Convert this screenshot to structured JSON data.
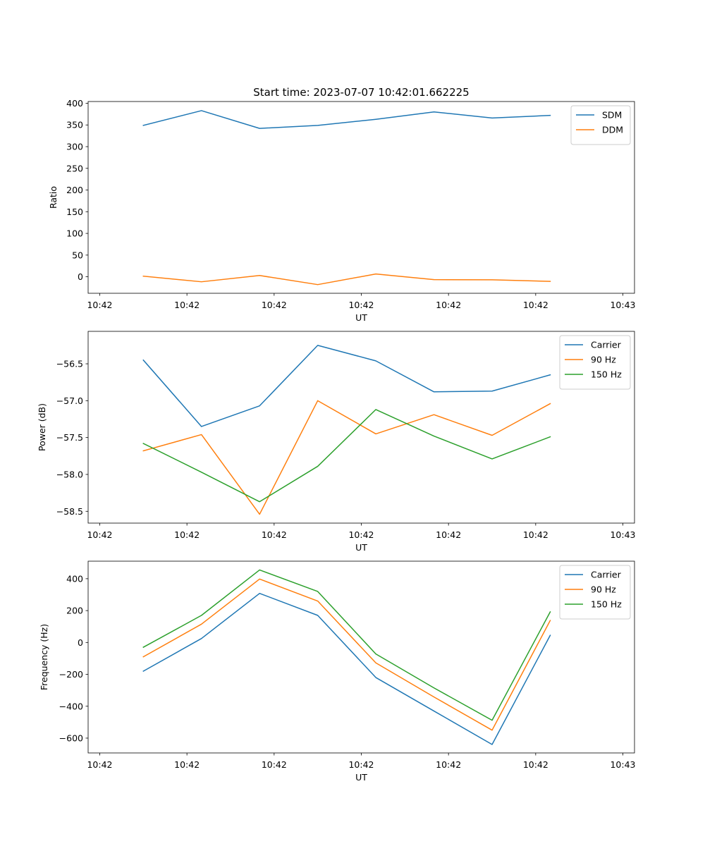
{
  "figure_title": "Start time: 2023-07-07 10:42:01.662225",
  "colors": {
    "blue": "#1f77b4",
    "orange": "#ff7f0e",
    "green": "#2ca02c"
  },
  "chart_data": [
    {
      "type": "line",
      "title": "Start time: 2023-07-07 10:42:01.662225",
      "xlabel": "UT",
      "ylabel": "Ratio",
      "x": [
        0,
        1,
        2,
        3,
        4,
        5,
        6,
        7
      ],
      "x_ticks": [
        -0.75,
        0.75,
        2.25,
        3.75,
        5.25,
        6.75,
        8.25
      ],
      "x_tick_labels": [
        "10:42",
        "10:42",
        "10:42",
        "10:42",
        "10:42",
        "10:42",
        "10:43"
      ],
      "xlim": [
        -0.95,
        8.45
      ],
      "ylim": [
        -38,
        404
      ],
      "y_ticks": [
        0,
        50,
        100,
        150,
        200,
        250,
        300,
        350,
        400
      ],
      "y_tick_labels": [
        "0",
        "50",
        "100",
        "150",
        "200",
        "250",
        "300",
        "350",
        "400"
      ],
      "legend": "top-right",
      "series": [
        {
          "name": "SDM",
          "color": "#1f77b4",
          "values": [
            349,
            383,
            342,
            349,
            363,
            380,
            366,
            372
          ]
        },
        {
          "name": "DDM",
          "color": "#ff7f0e",
          "values": [
            1.5,
            -11.5,
            3,
            -18,
            6.5,
            -6.5,
            -7,
            -10.5
          ]
        }
      ]
    },
    {
      "type": "line",
      "title": "",
      "xlabel": "UT",
      "ylabel": "Power (dB)",
      "x": [
        0,
        1,
        2,
        3,
        4,
        5,
        6,
        7
      ],
      "x_ticks": [
        -0.75,
        0.75,
        2.25,
        3.75,
        5.25,
        6.75,
        8.25
      ],
      "x_tick_labels": [
        "10:42",
        "10:42",
        "10:42",
        "10:42",
        "10:42",
        "10:42",
        "10:43"
      ],
      "xlim": [
        -0.95,
        8.45
      ],
      "ylim": [
        -58.66,
        -56.06
      ],
      "y_ticks": [
        -58.5,
        -58.0,
        -57.5,
        -57.0,
        -56.5
      ],
      "y_tick_labels": [
        "−58.5",
        "−58.0",
        "−57.5",
        "−57.0",
        "−56.5"
      ],
      "legend": "top-right",
      "series": [
        {
          "name": "Carrier",
          "color": "#1f77b4",
          "values": [
            -56.45,
            -57.35,
            -57.07,
            -56.25,
            -56.46,
            -56.88,
            -56.87,
            -56.65
          ]
        },
        {
          "name": "90 Hz",
          "color": "#ff7f0e",
          "values": [
            -57.68,
            -57.46,
            -58.54,
            -57.0,
            -57.45,
            -57.19,
            -57.47,
            -57.04
          ]
        },
        {
          "name": "150 Hz",
          "color": "#2ca02c",
          "values": [
            -57.58,
            -57.97,
            -58.37,
            -57.89,
            -57.12,
            -57.48,
            -57.79,
            -57.49
          ]
        }
      ]
    },
    {
      "type": "line",
      "title": "",
      "xlabel": "UT",
      "ylabel": "Frequency (Hz)",
      "x": [
        0,
        1,
        2,
        3,
        4,
        5,
        6,
        7
      ],
      "x_ticks": [
        -0.75,
        0.75,
        2.25,
        3.75,
        5.25,
        6.75,
        8.25
      ],
      "x_tick_labels": [
        "10:42",
        "10:42",
        "10:42",
        "10:42",
        "10:42",
        "10:42",
        "10:43"
      ],
      "xlim": [
        -0.95,
        8.45
      ],
      "ylim": [
        -693,
        510
      ],
      "y_ticks": [
        -600,
        -400,
        -200,
        0,
        200,
        400
      ],
      "y_tick_labels": [
        "−600",
        "−400",
        "−200",
        "0",
        "200",
        "400"
      ],
      "legend": "top-right",
      "series": [
        {
          "name": "Carrier",
          "color": "#1f77b4",
          "values": [
            -180,
            25,
            308,
            170,
            -220,
            -430,
            -640,
            45
          ]
        },
        {
          "name": "90 Hz",
          "color": "#ff7f0e",
          "values": [
            -90,
            115,
            398,
            260,
            -128,
            -342,
            -550,
            138
          ]
        },
        {
          "name": "150 Hz",
          "color": "#2ca02c",
          "values": [
            -30,
            170,
            455,
            320,
            -72,
            -285,
            -488,
            192
          ]
        }
      ]
    }
  ]
}
